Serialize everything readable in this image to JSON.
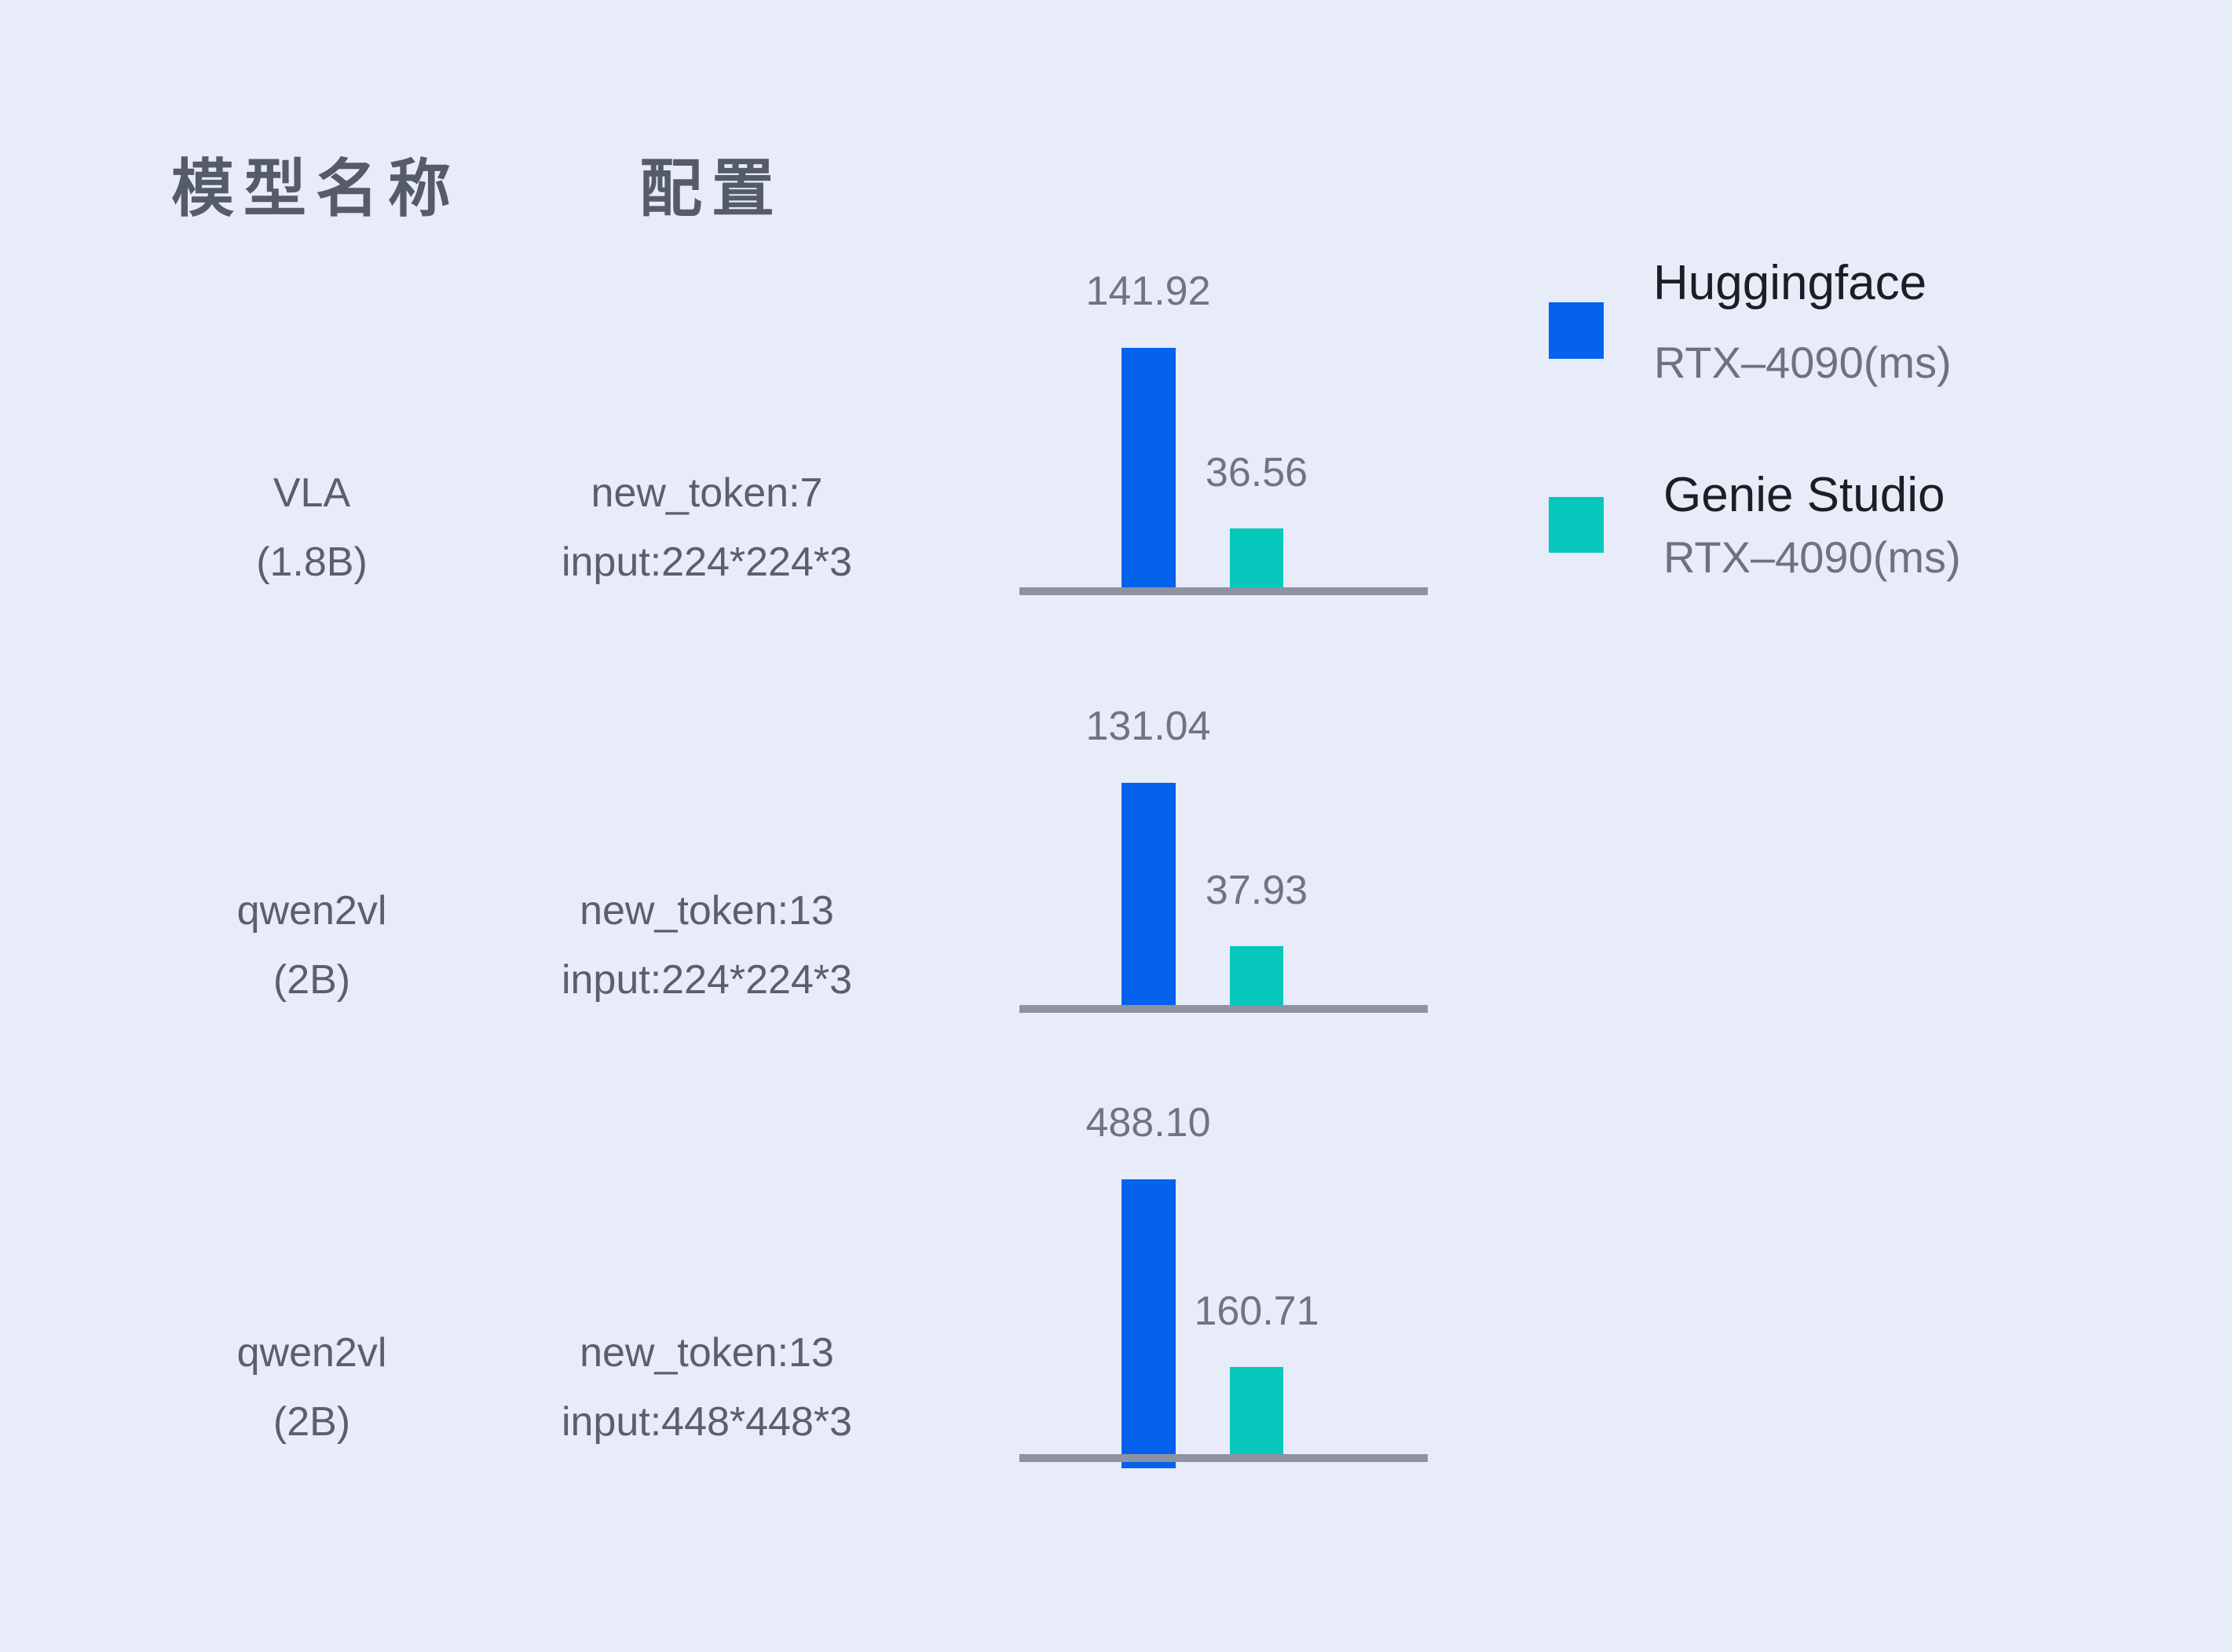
{
  "header": {
    "model_col": "模型名称",
    "config_col": "配置"
  },
  "legend": {
    "huggingface": {
      "name": "Huggingface",
      "device": "RTX–4090(ms)",
      "color": "#0562ec"
    },
    "genie_studio": {
      "name": "Genie Studio",
      "device": "RTX–4090(ms)",
      "color": "#06c8bc"
    }
  },
  "colors": {
    "background": "#e7ecf8",
    "huggingface_bar": "#0562ec",
    "genie_studio_bar": "#06c8bc",
    "axis_line": "#8d93a0",
    "value_text": "#6f7580",
    "label_text": "#5a5f6a",
    "header_text": "#565b68"
  },
  "chart_data": {
    "type": "bar",
    "unit": "ms",
    "legend_position": "top-right",
    "grid": false,
    "series": [
      {
        "name": "Huggingface RTX–4090(ms)",
        "color": "#0562ec",
        "values": [
          141.92,
          131.04,
          488.1
        ]
      },
      {
        "name": "Genie Studio RTX–4090(ms)",
        "color": "#06c8bc",
        "values": [
          36.56,
          37.93,
          160.71
        ]
      }
    ],
    "rows": [
      {
        "model_name": "VLA",
        "model_size": "(1.8B)",
        "config_line1": "new_token:7",
        "config_line2": "input:224*224*3",
        "huggingface_ms": 141.92,
        "genie_studio_ms": 36.56,
        "huggingface_label": "141.92",
        "genie_studio_label": "36.56"
      },
      {
        "model_name": "qwen2vl",
        "model_size": "(2B)",
        "config_line1": "new_token:13",
        "config_line2": "input:224*224*3",
        "huggingface_ms": 131.04,
        "genie_studio_ms": 37.93,
        "huggingface_label": "131.04",
        "genie_studio_label": "37.93"
      },
      {
        "model_name": "qwen2vl",
        "model_size": "(2B)",
        "config_line1": "new_token:13",
        "config_line2": "input:448*448*3",
        "huggingface_ms": 488.1,
        "genie_studio_ms": 160.71,
        "huggingface_label": "488.10",
        "genie_studio_label": "160.71"
      }
    ]
  }
}
